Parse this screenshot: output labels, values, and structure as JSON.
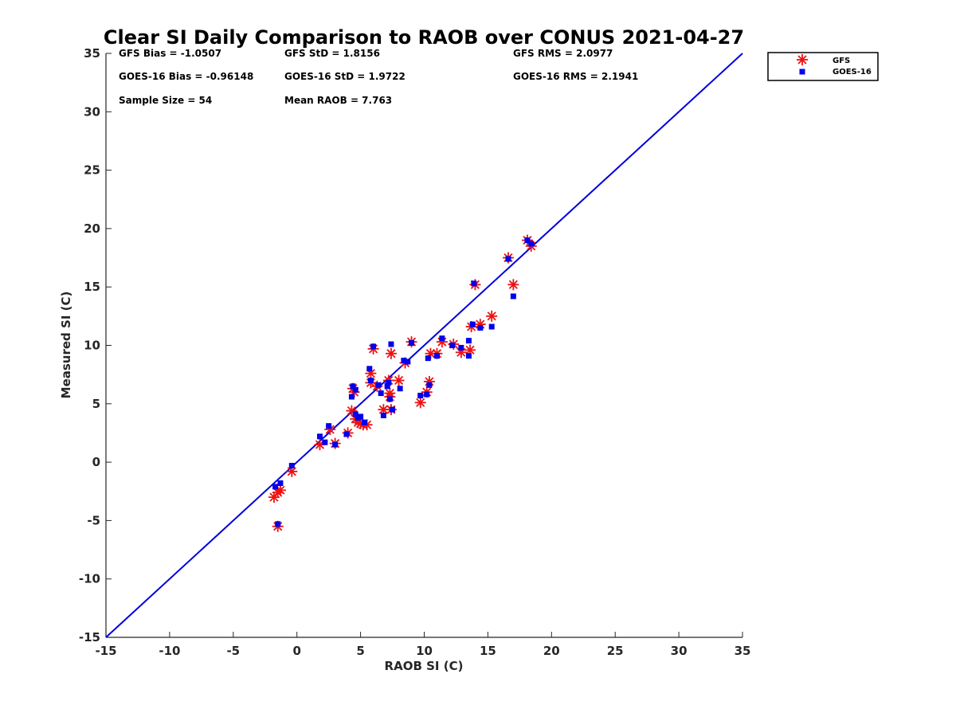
{
  "chart_data": {
    "type": "scatter",
    "title": "Clear SI Daily Comparison to RAOB over CONUS 2021-04-27",
    "xlabel": "RAOB SI (C)",
    "ylabel": "Measured SI (C)",
    "xlim": [
      -15,
      35
    ],
    "ylim": [
      -15,
      35
    ],
    "xticks": [
      "-15",
      "-10",
      "-5",
      "0",
      "5",
      "10",
      "15",
      "20",
      "25",
      "30",
      "35"
    ],
    "yticks": [
      "-15",
      "-10",
      "-5",
      "0",
      "5",
      "10",
      "15",
      "20",
      "25",
      "30",
      "35"
    ],
    "grid": false,
    "legend_position": "outside-top-right",
    "reference_line": {
      "x": [
        -15,
        35
      ],
      "y": [
        -15,
        35
      ],
      "color": "#0000dd"
    },
    "stats": [
      {
        "text": "GFS Bias = -1.0507"
      },
      {
        "text": "GFS StD = 1.8156"
      },
      {
        "text": "GFS RMS = 2.0977"
      },
      {
        "text": "GOES-16 Bias = -0.96148"
      },
      {
        "text": "GOES-16 StD = 1.9722"
      },
      {
        "text": "GOES-16 RMS = 2.1941"
      },
      {
        "text": "Sample Size = 54"
      },
      {
        "text": "Mean RAOB = 7.763"
      }
    ],
    "series": [
      {
        "name": "GFS",
        "marker": "asterisk",
        "color": "#ee1111",
        "points": [
          [
            -1.8,
            -3.0
          ],
          [
            -1.5,
            -2.6
          ],
          [
            -1.3,
            -2.4
          ],
          [
            -1.5,
            -5.5
          ],
          [
            -0.4,
            -0.8
          ],
          [
            1.8,
            1.5
          ],
          [
            2.6,
            2.8
          ],
          [
            3.0,
            1.6
          ],
          [
            4.0,
            2.5
          ],
          [
            4.3,
            4.4
          ],
          [
            4.6,
            3.7
          ],
          [
            4.8,
            3.4
          ],
          [
            5.0,
            3.3
          ],
          [
            5.2,
            3.2
          ],
          [
            5.5,
            3.2
          ],
          [
            4.4,
            6.3
          ],
          [
            4.5,
            6.0
          ],
          [
            5.8,
            6.8
          ],
          [
            5.8,
            7.6
          ],
          [
            6.3,
            6.5
          ],
          [
            6.8,
            4.5
          ],
          [
            7.2,
            7.0
          ],
          [
            7.3,
            5.6
          ],
          [
            7.3,
            5.9
          ],
          [
            7.4,
            4.5
          ],
          [
            7.4,
            9.3
          ],
          [
            8.0,
            7.0
          ],
          [
            8.5,
            8.5
          ],
          [
            9.0,
            10.3
          ],
          [
            6.0,
            9.7
          ],
          [
            9.7,
            5.1
          ],
          [
            10.2,
            6.0
          ],
          [
            10.4,
            6.9
          ],
          [
            10.5,
            9.3
          ],
          [
            11.0,
            9.3
          ],
          [
            11.4,
            10.3
          ],
          [
            12.3,
            10.1
          ],
          [
            12.9,
            9.4
          ],
          [
            13.6,
            9.6
          ],
          [
            13.7,
            11.6
          ],
          [
            14.0,
            15.2
          ],
          [
            14.4,
            11.8
          ],
          [
            15.3,
            12.5
          ],
          [
            16.6,
            17.5
          ],
          [
            17.0,
            15.2
          ],
          [
            18.1,
            19.0
          ],
          [
            18.4,
            18.5
          ]
        ]
      },
      {
        "name": "GOES-16",
        "marker": "square",
        "color": "#0000ee",
        "points": [
          [
            -1.7,
            -2.1
          ],
          [
            -1.3,
            -1.8
          ],
          [
            -1.5,
            -5.3
          ],
          [
            -0.4,
            -0.3
          ],
          [
            1.8,
            2.2
          ],
          [
            2.2,
            1.7
          ],
          [
            2.5,
            3.1
          ],
          [
            3.0,
            1.5
          ],
          [
            3.9,
            2.4
          ],
          [
            4.3,
            5.6
          ],
          [
            4.4,
            6.5
          ],
          [
            4.6,
            6.2
          ],
          [
            4.6,
            4.1
          ],
          [
            4.8,
            3.8
          ],
          [
            5.0,
            3.9
          ],
          [
            5.3,
            3.4
          ],
          [
            5.7,
            8.0
          ],
          [
            5.8,
            7.0
          ],
          [
            6.0,
            9.9
          ],
          [
            6.4,
            6.6
          ],
          [
            6.6,
            5.9
          ],
          [
            6.8,
            4.0
          ],
          [
            7.1,
            6.5
          ],
          [
            7.2,
            6.8
          ],
          [
            7.3,
            5.4
          ],
          [
            7.4,
            10.1
          ],
          [
            7.5,
            4.5
          ],
          [
            8.1,
            6.3
          ],
          [
            8.4,
            8.7
          ],
          [
            8.7,
            8.6
          ],
          [
            9.0,
            10.2
          ],
          [
            9.7,
            5.7
          ],
          [
            10.2,
            5.8
          ],
          [
            10.3,
            8.9
          ],
          [
            10.4,
            6.6
          ],
          [
            11.0,
            9.1
          ],
          [
            11.4,
            10.6
          ],
          [
            12.2,
            10.0
          ],
          [
            12.9,
            9.8
          ],
          [
            13.5,
            10.4
          ],
          [
            13.5,
            9.1
          ],
          [
            13.8,
            11.8
          ],
          [
            13.9,
            15.3
          ],
          [
            14.4,
            11.5
          ],
          [
            15.3,
            11.6
          ],
          [
            16.6,
            17.4
          ],
          [
            17.0,
            14.2
          ],
          [
            18.1,
            19.0
          ],
          [
            18.4,
            18.7
          ]
        ]
      }
    ]
  }
}
